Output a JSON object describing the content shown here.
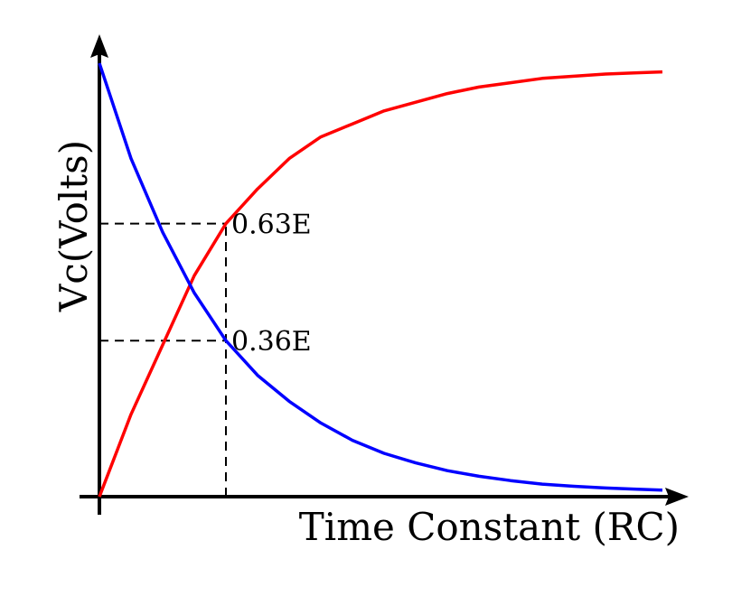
{
  "chart_data": {
    "type": "line",
    "xlabel": "Time Constant (RC)",
    "ylabel": "Vc(Volts)",
    "xlim": [
      0,
      4.5
    ],
    "ylim": [
      0,
      1
    ],
    "time_constant_marker": 1,
    "annotations": [
      {
        "text": "0.63E",
        "x": 1,
        "y": 0.63
      },
      {
        "text": "0.36E",
        "x": 1,
        "y": 0.36
      }
    ],
    "series": [
      {
        "curve": "charging",
        "color": "#ff0000",
        "x": [
          0,
          0.25,
          0.5,
          0.75,
          1,
          1.25,
          1.5,
          1.75,
          2,
          2.25,
          2.5,
          2.75,
          3,
          3.25,
          3.5,
          3.75,
          4,
          4.25,
          4.45
        ],
        "values": [
          0,
          0.19,
          0.35,
          0.51,
          0.63,
          0.71,
          0.78,
          0.83,
          0.86,
          0.89,
          0.91,
          0.93,
          0.945,
          0.955,
          0.965,
          0.97,
          0.975,
          0.978,
          0.98
        ]
      },
      {
        "curve": "discharging",
        "color": "#0000ff",
        "x": [
          0,
          0.25,
          0.5,
          0.75,
          1,
          1.25,
          1.5,
          1.75,
          2,
          2.25,
          2.5,
          2.75,
          3,
          3.25,
          3.5,
          3.75,
          4,
          4.25,
          4.45
        ],
        "values": [
          1,
          0.78,
          0.61,
          0.47,
          0.36,
          0.28,
          0.22,
          0.17,
          0.13,
          0.1,
          0.078,
          0.06,
          0.047,
          0.037,
          0.029,
          0.024,
          0.02,
          0.017,
          0.015
        ]
      }
    ]
  }
}
